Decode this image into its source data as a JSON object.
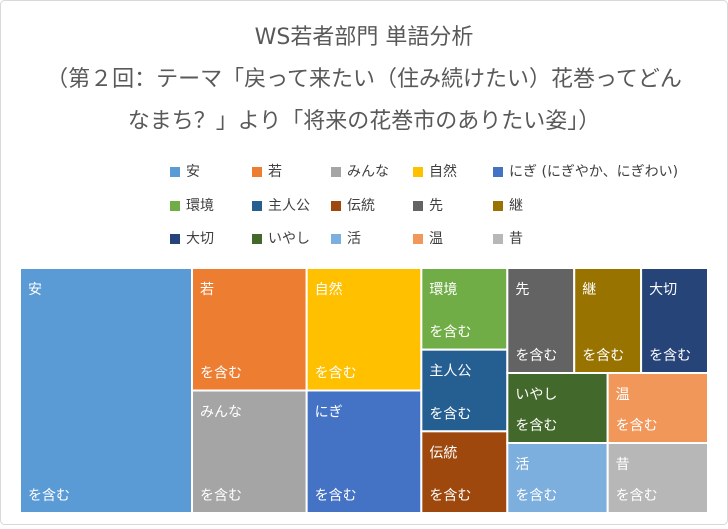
{
  "chart_data": {
    "type": "treemap",
    "title": [
      "WS若者部門 単語分析",
      "（第２回：テーマ「戻って来たい（住み続けたい）花巻ってどん",
      "なまち？」より「将来の花巻市のありたい姿」）"
    ],
    "categories": [
      "安",
      "若",
      "みんな",
      "自然",
      "にぎ (にぎやか、にぎわい)",
      "環境",
      "主人公",
      "伝統",
      "先",
      "継",
      "大切",
      "いやし",
      "活",
      "温",
      "昔"
    ],
    "tile_labels": [
      "安",
      "若",
      "みんな",
      "自然",
      "にぎ",
      "環境",
      "主人公",
      "伝統",
      "先",
      "継",
      "大切",
      "いやし",
      "活",
      "温",
      "昔"
    ],
    "tile_suffix": "を含む",
    "values": [
      6,
      2,
      2,
      2,
      2,
      1,
      1,
      1,
      1,
      1,
      1,
      1,
      1,
      1,
      1
    ],
    "colors": [
      "#5b9bd5",
      "#ed7d31",
      "#a5a5a5",
      "#ffc000",
      "#4472c4",
      "#70ad47",
      "#255e91",
      "#9e480e",
      "#636363",
      "#997300",
      "#264478",
      "#43682b",
      "#7cafdd",
      "#f1975a",
      "#b7b7b7"
    ],
    "legend": "top"
  }
}
